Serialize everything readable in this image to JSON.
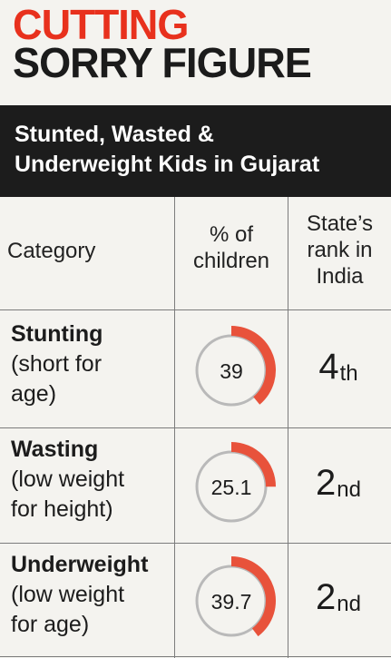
{
  "headline": {
    "line1": "CUTTING",
    "line2": "SORRY FIGURE"
  },
  "banner": {
    "line1": "Stunted, Wasted &",
    "line2": "Underweight Kids in Gujarat"
  },
  "table": {
    "headers": {
      "category": "Category",
      "percent": [
        "% of",
        "children"
      ],
      "rank": [
        "State’s",
        "rank in",
        "India"
      ]
    }
  },
  "colors": {
    "accent": "#e8523b",
    "headline_red": "#e8311d",
    "ring_gray": "#b9b9b9"
  },
  "chart_data": {
    "type": "table",
    "columns": [
      "Category",
      "% of children",
      "State’s rank in India"
    ],
    "unit": "%",
    "rows": [
      {
        "name": "Stunting",
        "desc": [
          "(short for",
          "age)"
        ],
        "value": 39,
        "value_label": "39",
        "rank_num": "4",
        "rank_suffix": "th"
      },
      {
        "name": "Wasting",
        "desc": [
          "(low weight",
          "for height)"
        ],
        "value": 25.1,
        "value_label": "25.1",
        "rank_num": "2",
        "rank_suffix": "nd"
      },
      {
        "name": "Underweight",
        "desc": [
          "(low weight",
          "for age)"
        ],
        "value": 39.7,
        "value_label": "39.7",
        "rank_num": "2",
        "rank_suffix": "nd"
      }
    ]
  }
}
